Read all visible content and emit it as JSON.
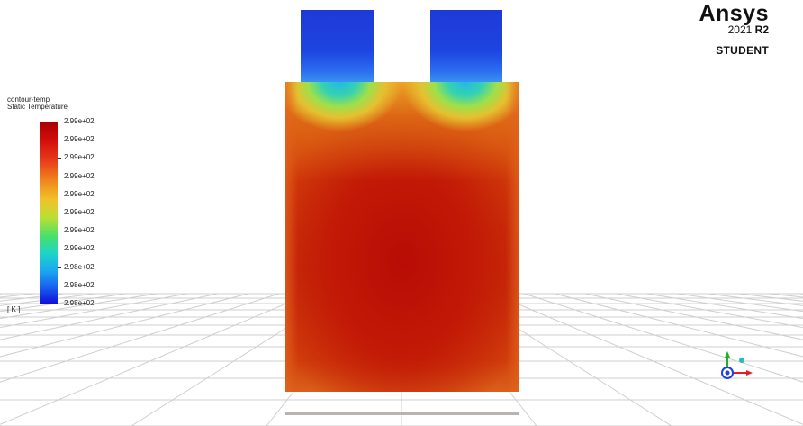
{
  "logo": {
    "wordmark": "Ansys",
    "version_year": "2021",
    "version_release": "R2",
    "edition": "STUDENT"
  },
  "legend": {
    "title": "contour-temp",
    "subtitle": "Static Temperature",
    "unit": "[ K ]",
    "levels": [
      "2.99e+02",
      "2.99e+02",
      "2.99e+02",
      "2.99e+02",
      "2.99e+02",
      "2.99e+02",
      "2.99e+02",
      "2.99e+02",
      "2.98e+02",
      "2.98e+02",
      "2.98e+02"
    ]
  },
  "colors": {
    "hot": "#b80c05",
    "cold": "#1d3ad8",
    "floor_grid": "#cfcfcf",
    "axis_x": "#e02020",
    "axis_y": "#20b020",
    "axis_z": "#2040e0"
  },
  "icons": {
    "axis_triad": "xyz-axis-triad-icon",
    "logo": "ansys-logo"
  }
}
